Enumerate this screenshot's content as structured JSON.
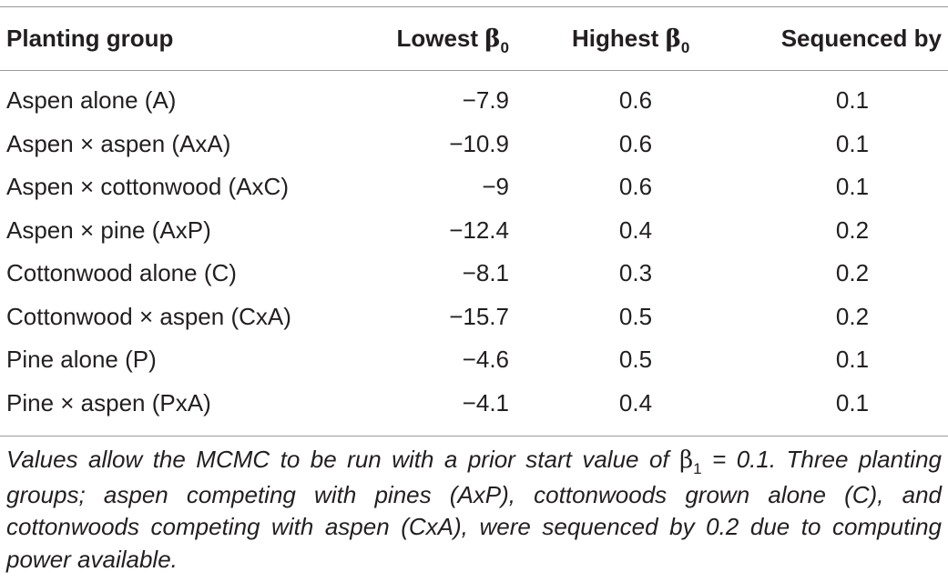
{
  "table": {
    "headers": {
      "group": "Planting group",
      "lowest_prefix": "Lowest ",
      "highest_prefix": "Highest ",
      "beta_symbol": "β",
      "beta_subscript": "0",
      "sequenced": "Sequenced by"
    },
    "rows": [
      {
        "group": "Aspen alone (A)",
        "lowest": "−7.9",
        "highest": "0.6",
        "sequenced": "0.1"
      },
      {
        "group": "Aspen × aspen (AxA)",
        "lowest": "−10.9",
        "highest": "0.6",
        "sequenced": "0.1"
      },
      {
        "group": "Aspen × cottonwood (AxC)",
        "lowest": "−9",
        "highest": "0.6",
        "sequenced": "0.1"
      },
      {
        "group": "Aspen × pine (AxP)",
        "lowest": "−12.4",
        "highest": "0.4",
        "sequenced": "0.2"
      },
      {
        "group": "Cottonwood alone (C)",
        "lowest": "−8.1",
        "highest": "0.3",
        "sequenced": "0.2"
      },
      {
        "group": "Cottonwood × aspen (CxA)",
        "lowest": "−15.7",
        "highest": "0.5",
        "sequenced": "0.2"
      },
      {
        "group": "Pine alone (P)",
        "lowest": "−4.6",
        "highest": "0.5",
        "sequenced": "0.1"
      },
      {
        "group": "Pine × aspen (PxA)",
        "lowest": "−4.1",
        "highest": "0.4",
        "sequenced": "0.1"
      }
    ]
  },
  "footnote": {
    "part1": "Values allow the MCMC to be run with a prior start value of ",
    "beta_symbol": "β",
    "beta_subscript": "1",
    "part2": " = 0.1. Three planting groups; aspen competing with pines (AxP), cottonwoods grown alone (C), and cottonwoods competing with aspen (CxA), were sequenced by 0.2 due to computing power available."
  }
}
